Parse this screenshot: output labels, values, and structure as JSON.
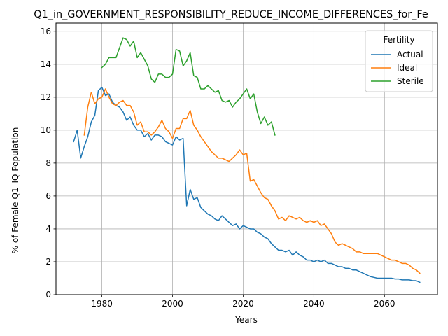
{
  "chart_data": {
    "type": "line",
    "title": "Q1_in_GOVERNMENT_RESPONSIBILITY_REDUCE_INCOME_DIFFERENCES_for_Fe",
    "xlabel": "Years",
    "ylabel": "% of Female Q1_IQ Population",
    "xlim": [
      1967,
      2075
    ],
    "ylim": [
      0,
      16.5
    ],
    "xticks": [
      1980,
      2000,
      2020,
      2040,
      2060
    ],
    "yticks": [
      0,
      2,
      4,
      6,
      8,
      10,
      12,
      14,
      16
    ],
    "grid": true,
    "legend": {
      "title": "Fertility",
      "placement": "top-right"
    },
    "series": [
      {
        "name": "Actual",
        "color": "#1f77b4",
        "x": [
          1972,
          1973,
          1974,
          1975,
          1976,
          1977,
          1978,
          1979,
          1980,
          1981,
          1982,
          1983,
          1984,
          1985,
          1986,
          1987,
          1988,
          1989,
          1990,
          1991,
          1992,
          1993,
          1994,
          1995,
          1996,
          1997,
          1998,
          1999,
          2000,
          2001,
          2002,
          2003,
          2004,
          2005,
          2006,
          2007,
          2008,
          2009,
          2010,
          2011,
          2012,
          2013,
          2014,
          2015,
          2016,
          2017,
          2018,
          2019,
          2020,
          2021,
          2022,
          2023,
          2024,
          2025,
          2026,
          2027,
          2028,
          2029,
          2030,
          2031,
          2032,
          2033,
          2034,
          2035,
          2036,
          2037,
          2038,
          2039,
          2040,
          2041,
          2042,
          2043,
          2044,
          2045,
          2046,
          2047,
          2048,
          2049,
          2050,
          2051,
          2052,
          2053,
          2054,
          2055,
          2056,
          2057,
          2058,
          2059,
          2060,
          2061,
          2062,
          2063,
          2064,
          2065,
          2066,
          2067,
          2068,
          2069,
          2070
        ],
        "y": [
          9.3,
          10.0,
          8.3,
          9.0,
          9.6,
          10.5,
          10.9,
          12.4,
          12.6,
          12.1,
          12.2,
          11.7,
          11.5,
          11.4,
          11.1,
          10.6,
          10.8,
          10.3,
          10.0,
          10.0,
          9.6,
          9.8,
          9.4,
          9.7,
          9.7,
          9.6,
          9.3,
          9.2,
          9.1,
          9.6,
          9.4,
          9.5,
          5.4,
          6.4,
          5.8,
          5.9,
          5.3,
          5.1,
          4.9,
          4.8,
          4.6,
          4.5,
          4.8,
          4.6,
          4.4,
          4.2,
          4.3,
          4.0,
          4.2,
          4.1,
          4.0,
          4.0,
          3.8,
          3.7,
          3.5,
          3.4,
          3.1,
          2.9,
          2.7,
          2.7,
          2.6,
          2.7,
          2.4,
          2.6,
          2.4,
          2.3,
          2.1,
          2.1,
          2.0,
          2.1,
          2.0,
          2.1,
          1.9,
          1.9,
          1.8,
          1.7,
          1.7,
          1.6,
          1.6,
          1.5,
          1.5,
          1.4,
          1.3,
          1.2,
          1.1,
          1.05,
          1.0,
          1.0,
          1.0,
          1.0,
          1.0,
          0.95,
          0.95,
          0.9,
          0.9,
          0.9,
          0.85,
          0.85,
          0.75
        ]
      },
      {
        "name": "Ideal",
        "color": "#ff7f0e",
        "x": [
          1975,
          1976,
          1977,
          1978,
          1979,
          1980,
          1981,
          1982,
          1983,
          1984,
          1985,
          1986,
          1987,
          1988,
          1989,
          1990,
          1991,
          1992,
          1993,
          1994,
          1995,
          1996,
          1997,
          1998,
          1999,
          2000,
          2001,
          2002,
          2003,
          2004,
          2005,
          2006,
          2007,
          2008,
          2009,
          2010,
          2011,
          2012,
          2013,
          2014,
          2015,
          2016,
          2017,
          2018,
          2019,
          2020,
          2021,
          2022,
          2023,
          2024,
          2025,
          2026,
          2027,
          2028,
          2029,
          2030,
          2031,
          2032,
          2033,
          2034,
          2035,
          2036,
          2037,
          2038,
          2039,
          2040,
          2041,
          2042,
          2043,
          2044,
          2045,
          2046,
          2047,
          2048,
          2049,
          2050,
          2051,
          2052,
          2053,
          2054,
          2055,
          2056,
          2057,
          2058,
          2059,
          2060,
          2061,
          2062,
          2063,
          2064,
          2065,
          2066,
          2067,
          2068,
          2069,
          2070
        ],
        "y": [
          9.7,
          11.4,
          12.3,
          11.6,
          11.9,
          12.0,
          12.5,
          12.0,
          11.6,
          11.5,
          11.7,
          11.8,
          11.5,
          11.5,
          11.1,
          10.3,
          10.5,
          9.9,
          9.9,
          9.7,
          9.9,
          10.2,
          10.6,
          10.1,
          9.9,
          9.5,
          10.1,
          10.1,
          10.7,
          10.7,
          11.2,
          10.3,
          10.0,
          9.6,
          9.3,
          9.0,
          8.7,
          8.5,
          8.3,
          8.3,
          8.2,
          8.1,
          8.3,
          8.5,
          8.8,
          8.5,
          8.6,
          6.9,
          7.0,
          6.6,
          6.2,
          5.9,
          5.8,
          5.4,
          5.1,
          4.6,
          4.7,
          4.5,
          4.8,
          4.7,
          4.6,
          4.7,
          4.5,
          4.4,
          4.5,
          4.4,
          4.5,
          4.2,
          4.3,
          4.0,
          3.7,
          3.2,
          3.0,
          3.1,
          3.0,
          2.9,
          2.8,
          2.6,
          2.6,
          2.5,
          2.5,
          2.5,
          2.5,
          2.5,
          2.4,
          2.3,
          2.2,
          2.1,
          2.1,
          2.0,
          1.9,
          1.9,
          1.8,
          1.6,
          1.5,
          1.3
        ]
      },
      {
        "name": "Sterile",
        "color": "#2ca02c",
        "x": [
          1980,
          1981,
          1982,
          1983,
          1984,
          1985,
          1986,
          1987,
          1988,
          1989,
          1990,
          1991,
          1992,
          1993,
          1994,
          1995,
          1996,
          1997,
          1998,
          1999,
          2000,
          2001,
          2002,
          2003,
          2004,
          2005,
          2006,
          2007,
          2008,
          2009,
          2010,
          2011,
          2012,
          2013,
          2014,
          2015,
          2016,
          2017,
          2018,
          2019,
          2020,
          2021,
          2022,
          2023,
          2024,
          2025,
          2026,
          2027,
          2028,
          2029
        ],
        "y": [
          13.8,
          14.0,
          14.4,
          14.4,
          14.4,
          15.0,
          15.6,
          15.5,
          15.1,
          15.4,
          14.4,
          14.7,
          14.3,
          13.9,
          13.1,
          12.9,
          13.4,
          13.4,
          13.2,
          13.2,
          13.4,
          14.9,
          14.8,
          13.9,
          14.2,
          14.7,
          13.3,
          13.2,
          12.5,
          12.5,
          12.7,
          12.5,
          12.3,
          12.4,
          11.8,
          11.7,
          11.8,
          11.4,
          11.7,
          11.9,
          12.2,
          12.5,
          11.9,
          12.2,
          11.1,
          10.4,
          10.8,
          10.3,
          10.5,
          9.7
        ]
      }
    ]
  }
}
